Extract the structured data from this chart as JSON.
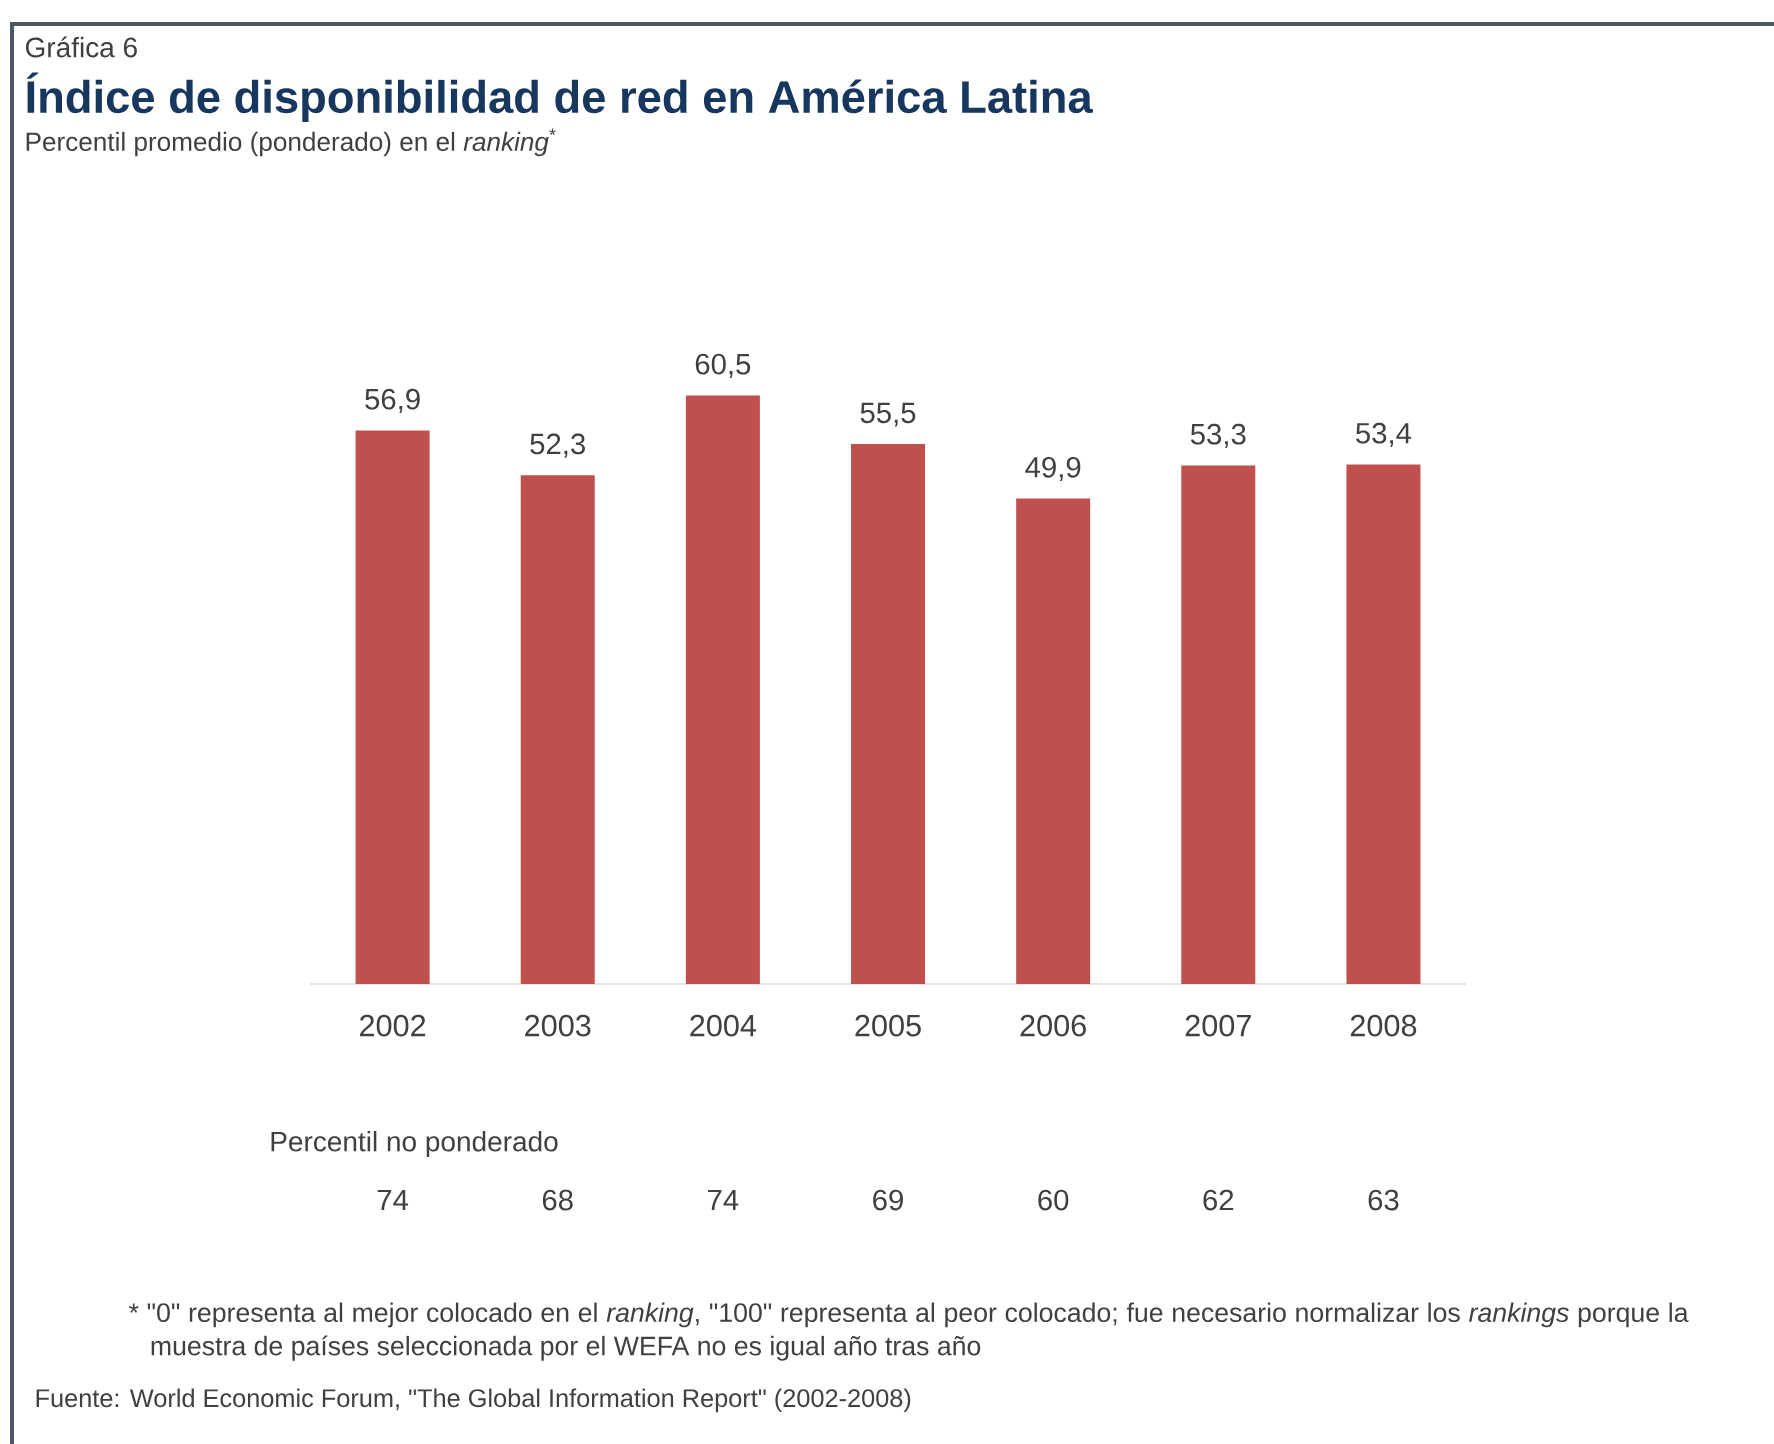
{
  "chart_data": {
    "type": "bar",
    "title": "Índice de disponibilidad de red en América Latina",
    "subtitle": "Percentil promedio (ponderado) en el *ranking*$^{*}$",
    "categories": [
      "2002",
      "2003",
      "2004",
      "2005",
      "2006",
      "2007",
      "2008"
    ],
    "values": [
      56.9,
      52.3,
      60.5,
      55.5,
      49.9,
      53.3,
      53.4
    ],
    "value_labels": [
      "56,9",
      "52,3",
      "60,5",
      "55,5",
      "49,9",
      "53,3",
      "53,4"
    ],
    "color": "#c0504d",
    "annotations": [
      "Gráfica 6",
      "Percentil no ponderado",
      "74",
      "68",
      "74",
      "69",
      "60",
      "62",
      "63",
      "* \"0\" representa al mejor colocado en el *ranking*, \"100\" representa al peor colocado; fue necesario normalizar los *rankings* porque la muestra de países seleccionada por el WEFA no es igual año tras año",
      "Fuente: World Economic Forum, \"The Global Information Report\" (2002-2008)"
    ]
  }
}
